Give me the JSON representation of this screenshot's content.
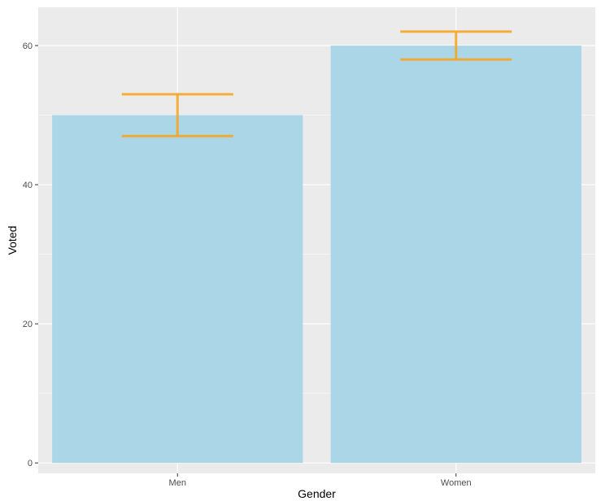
{
  "chart_data": {
    "type": "bar",
    "categories": [
      "Men",
      "Women"
    ],
    "values": [
      50,
      60
    ],
    "error_bars": [
      {
        "lower": 47,
        "upper": 53
      },
      {
        "lower": 58,
        "upper": 62
      }
    ],
    "title": "",
    "xlabel": "Gender",
    "ylabel": "Voted",
    "ylim": [
      -1.5,
      65.5
    ],
    "yticks": [
      0,
      20,
      40,
      60
    ],
    "grid": true,
    "colors": {
      "panel": "#ebebeb",
      "grid_major": "#ffffff",
      "bar": "#a8d5e8",
      "error_bar": "#f5a623"
    }
  }
}
